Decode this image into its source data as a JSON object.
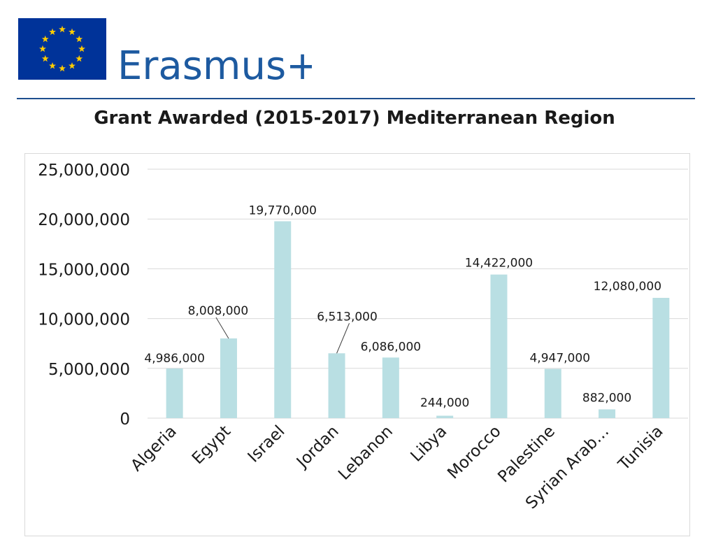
{
  "brand": {
    "name": "Erasmus+",
    "flag_color": "#003399",
    "star_color": "#ffcc00",
    "text_color": "#1d5aa0"
  },
  "slide": {
    "title": "Grant Awarded (2015-2017) Mediterranean Region"
  },
  "chart_data": {
    "type": "bar",
    "title": "",
    "xlabel": "",
    "ylabel": "",
    "categories": [
      "Algeria",
      "Egypt",
      "Israel",
      "Jordan",
      "Lebanon",
      "Libya",
      "Morocco",
      "Palestine",
      "Syrian Arab…",
      "Tunisia"
    ],
    "values": [
      4986000,
      8008000,
      19770000,
      6513000,
      6086000,
      244000,
      14422000,
      4947000,
      882000,
      12080000
    ],
    "data_labels": [
      "4,986,000",
      "8,008,000",
      "19,770,000",
      "6,513,000",
      "6,086,000",
      "244,000",
      "14,422,000",
      "4,947,000",
      "882,000",
      "12,080,000"
    ],
    "y_ticks": [
      0,
      5000000,
      10000000,
      15000000,
      20000000,
      25000000
    ],
    "y_tick_labels": [
      "0",
      "5,000,000",
      "10,000,000",
      "15,000,000",
      "20,000,000",
      "25,000,000"
    ],
    "ylim": [
      0,
      25000000
    ],
    "grid": true,
    "legend": "none",
    "bar_color": "#b9dfe3",
    "grid_color": "#d9d9d9"
  }
}
